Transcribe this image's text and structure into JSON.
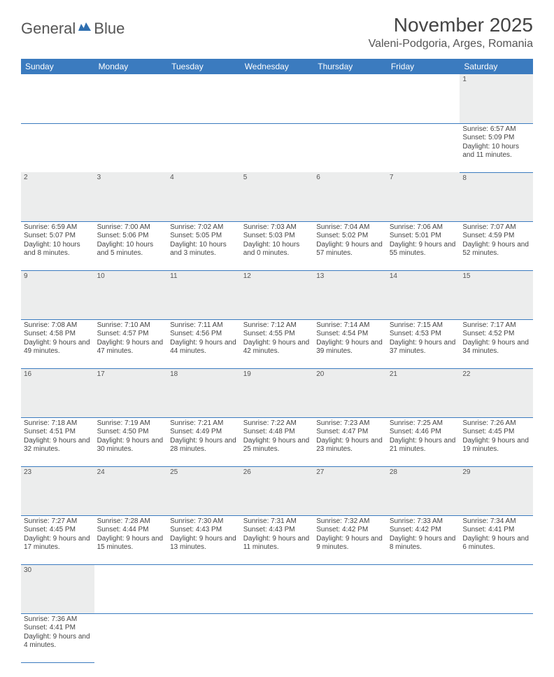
{
  "logo": {
    "part1": "General",
    "part2": "Blue"
  },
  "title": "November 2025",
  "location": "Valeni-Podgoria, Arges, Romania",
  "colors": {
    "header_bg": "#3b7bbf",
    "header_text": "#ffffff",
    "daynum_bg": "#eceded",
    "rule": "#3b7bbf",
    "text": "#444444",
    "logo_blue": "#2f6fb0"
  },
  "dayHeaders": [
    "Sunday",
    "Monday",
    "Tuesday",
    "Wednesday",
    "Thursday",
    "Friday",
    "Saturday"
  ],
  "weeks": [
    {
      "nums": [
        "",
        "",
        "",
        "",
        "",
        "",
        "1"
      ],
      "cells": [
        "",
        "",
        "",
        "",
        "",
        "",
        "Sunrise: 6:57 AM\nSunset: 5:09 PM\nDaylight: 10 hours and 11 minutes."
      ]
    },
    {
      "nums": [
        "2",
        "3",
        "4",
        "5",
        "6",
        "7",
        "8"
      ],
      "cells": [
        "Sunrise: 6:59 AM\nSunset: 5:07 PM\nDaylight: 10 hours and 8 minutes.",
        "Sunrise: 7:00 AM\nSunset: 5:06 PM\nDaylight: 10 hours and 5 minutes.",
        "Sunrise: 7:02 AM\nSunset: 5:05 PM\nDaylight: 10 hours and 3 minutes.",
        "Sunrise: 7:03 AM\nSunset: 5:03 PM\nDaylight: 10 hours and 0 minutes.",
        "Sunrise: 7:04 AM\nSunset: 5:02 PM\nDaylight: 9 hours and 57 minutes.",
        "Sunrise: 7:06 AM\nSunset: 5:01 PM\nDaylight: 9 hours and 55 minutes.",
        "Sunrise: 7:07 AM\nSunset: 4:59 PM\nDaylight: 9 hours and 52 minutes."
      ]
    },
    {
      "nums": [
        "9",
        "10",
        "11",
        "12",
        "13",
        "14",
        "15"
      ],
      "cells": [
        "Sunrise: 7:08 AM\nSunset: 4:58 PM\nDaylight: 9 hours and 49 minutes.",
        "Sunrise: 7:10 AM\nSunset: 4:57 PM\nDaylight: 9 hours and 47 minutes.",
        "Sunrise: 7:11 AM\nSunset: 4:56 PM\nDaylight: 9 hours and 44 minutes.",
        "Sunrise: 7:12 AM\nSunset: 4:55 PM\nDaylight: 9 hours and 42 minutes.",
        "Sunrise: 7:14 AM\nSunset: 4:54 PM\nDaylight: 9 hours and 39 minutes.",
        "Sunrise: 7:15 AM\nSunset: 4:53 PM\nDaylight: 9 hours and 37 minutes.",
        "Sunrise: 7:17 AM\nSunset: 4:52 PM\nDaylight: 9 hours and 34 minutes."
      ]
    },
    {
      "nums": [
        "16",
        "17",
        "18",
        "19",
        "20",
        "21",
        "22"
      ],
      "cells": [
        "Sunrise: 7:18 AM\nSunset: 4:51 PM\nDaylight: 9 hours and 32 minutes.",
        "Sunrise: 7:19 AM\nSunset: 4:50 PM\nDaylight: 9 hours and 30 minutes.",
        "Sunrise: 7:21 AM\nSunset: 4:49 PM\nDaylight: 9 hours and 28 minutes.",
        "Sunrise: 7:22 AM\nSunset: 4:48 PM\nDaylight: 9 hours and 25 minutes.",
        "Sunrise: 7:23 AM\nSunset: 4:47 PM\nDaylight: 9 hours and 23 minutes.",
        "Sunrise: 7:25 AM\nSunset: 4:46 PM\nDaylight: 9 hours and 21 minutes.",
        "Sunrise: 7:26 AM\nSunset: 4:45 PM\nDaylight: 9 hours and 19 minutes."
      ]
    },
    {
      "nums": [
        "23",
        "24",
        "25",
        "26",
        "27",
        "28",
        "29"
      ],
      "cells": [
        "Sunrise: 7:27 AM\nSunset: 4:45 PM\nDaylight: 9 hours and 17 minutes.",
        "Sunrise: 7:28 AM\nSunset: 4:44 PM\nDaylight: 9 hours and 15 minutes.",
        "Sunrise: 7:30 AM\nSunset: 4:43 PM\nDaylight: 9 hours and 13 minutes.",
        "Sunrise: 7:31 AM\nSunset: 4:43 PM\nDaylight: 9 hours and 11 minutes.",
        "Sunrise: 7:32 AM\nSunset: 4:42 PM\nDaylight: 9 hours and 9 minutes.",
        "Sunrise: 7:33 AM\nSunset: 4:42 PM\nDaylight: 9 hours and 8 minutes.",
        "Sunrise: 7:34 AM\nSunset: 4:41 PM\nDaylight: 9 hours and 6 minutes."
      ]
    },
    {
      "nums": [
        "30",
        "",
        "",
        "",
        "",
        "",
        ""
      ],
      "cells": [
        "Sunrise: 7:36 AM\nSunset: 4:41 PM\nDaylight: 9 hours and 4 minutes.",
        "",
        "",
        "",
        "",
        "",
        ""
      ]
    }
  ]
}
